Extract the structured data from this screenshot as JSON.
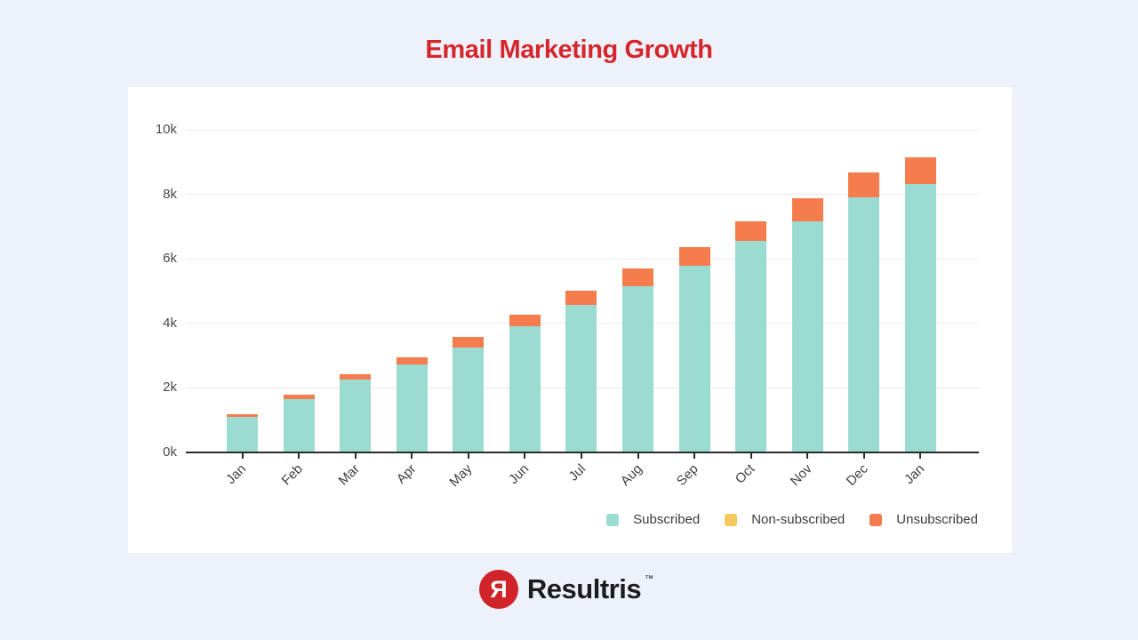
{
  "page": {
    "title": "Email Marketing Growth"
  },
  "brand": {
    "logo_letter": "Я",
    "name": "Resultris",
    "trademark": "™"
  },
  "colors": {
    "background": "#edf1fa",
    "panel": "#ffffff",
    "title": "#d5262c",
    "subscribed": "#9adcd2",
    "non_subscribed": "#f6c95e",
    "unsubscribed": "#f57c4c",
    "gridline": "#e9e9e9",
    "axis": "#2b2b2b",
    "tick_text": "#4a4a4a",
    "legend_text": "#3c3c3c",
    "logo_red": "#d0232a",
    "logo_text": "#1c1c1e"
  },
  "chart_data": {
    "type": "bar",
    "stacked": true,
    "title": "Email Marketing Growth",
    "xlabel": "",
    "ylabel": "",
    "grid": true,
    "legend_position": "bottom-right",
    "ylim": [
      0,
      10000
    ],
    "y_ticks": [
      "0k",
      "2k",
      "4k",
      "6k",
      "8k",
      "10k"
    ],
    "y_tick_values": [
      0,
      2000,
      4000,
      6000,
      8000,
      10000
    ],
    "categories": [
      "Jan",
      "Feb",
      "Mar",
      "Apr",
      "May",
      "Jun",
      "Jul",
      "Aug",
      "Sep",
      "Oct",
      "Nov",
      "Dec",
      "Jan"
    ],
    "series": [
      {
        "name": "Subscribed",
        "color_key": "subscribed",
        "values": [
          1100,
          1660,
          2250,
          2730,
          3250,
          3900,
          4580,
          5160,
          5790,
          6550,
          7160,
          7910,
          8330
        ]
      },
      {
        "name": "Non-subscribed",
        "color_key": "non_subscribed",
        "values": [
          0,
          0,
          0,
          0,
          0,
          0,
          0,
          0,
          0,
          0,
          0,
          0,
          0
        ]
      },
      {
        "name": "Unsubscribed",
        "color_key": "unsubscribed",
        "values": [
          80,
          140,
          170,
          230,
          320,
          380,
          440,
          540,
          570,
          600,
          730,
          760,
          810
        ]
      }
    ]
  }
}
